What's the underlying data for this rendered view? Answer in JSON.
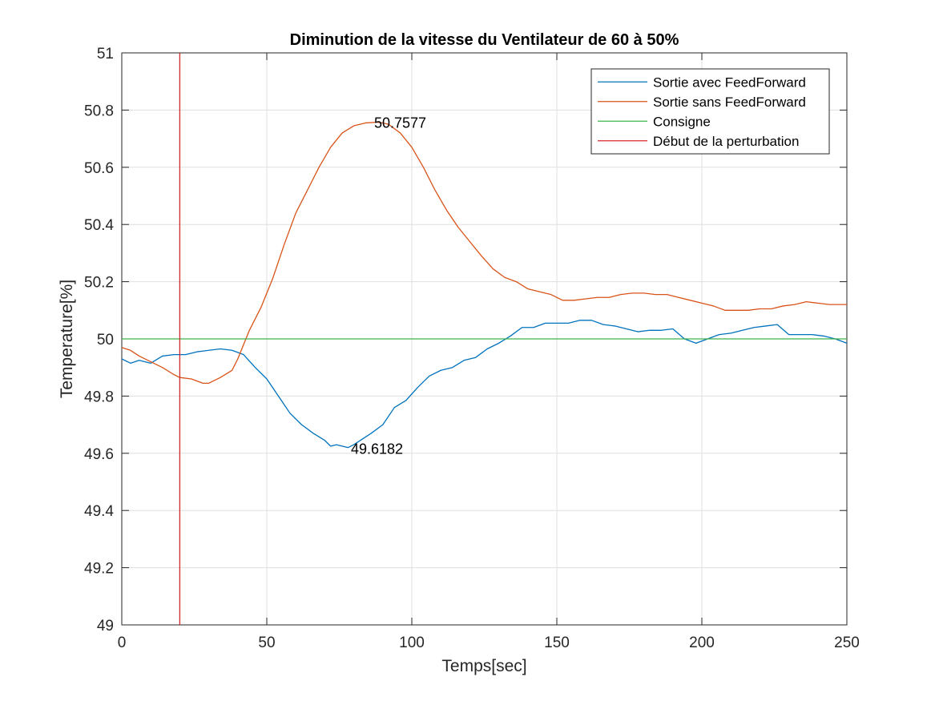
{
  "chart_data": {
    "type": "line",
    "title": "Diminution de la vitesse du Ventilateur de 60 à 50%",
    "xlabel": "Temps[sec]",
    "ylabel": "Temperature[%]",
    "xlim": [
      0,
      250
    ],
    "ylim": [
      49,
      51
    ],
    "xticks": [
      0,
      50,
      100,
      150,
      200,
      250
    ],
    "xtick_labels": [
      "0",
      "50",
      "100",
      "150",
      "200",
      "250"
    ],
    "yticks": [
      49,
      49.2,
      49.4,
      49.6,
      49.8,
      50,
      50.2,
      50.4,
      50.6,
      50.8,
      51
    ],
    "ytick_labels": [
      "49",
      "49.2",
      "49.4",
      "49.6",
      "49.8",
      "50",
      "50.2",
      "50.4",
      "50.6",
      "50.8",
      "51"
    ],
    "grid": true,
    "legend_position": "top-right",
    "series": [
      {
        "name": "Sortie avec FeedForward",
        "color": "#0072BD",
        "x": [
          0,
          3,
          6,
          10,
          14,
          18,
          22,
          26,
          30,
          34,
          38,
          42,
          46,
          50,
          54,
          58,
          62,
          66,
          70,
          72,
          74,
          76,
          78,
          80,
          83,
          86,
          90,
          94,
          98,
          102,
          106,
          110,
          114,
          118,
          122,
          126,
          130,
          134,
          138,
          142,
          146,
          150,
          154,
          158,
          162,
          166,
          170,
          174,
          178,
          182,
          186,
          190,
          194,
          198,
          202,
          206,
          210,
          214,
          218,
          222,
          226,
          230,
          234,
          238,
          242,
          246,
          250
        ],
        "y": [
          49.93,
          49.915,
          49.925,
          49.915,
          49.94,
          49.945,
          49.945,
          49.955,
          49.96,
          49.965,
          49.96,
          49.945,
          49.9,
          49.86,
          49.8,
          49.74,
          49.7,
          49.67,
          49.645,
          49.625,
          49.63,
          49.625,
          49.62,
          49.63,
          49.65,
          49.67,
          49.7,
          49.76,
          49.785,
          49.83,
          49.87,
          49.89,
          49.9,
          49.925,
          49.935,
          49.965,
          49.985,
          50.01,
          50.04,
          50.04,
          50.055,
          50.055,
          50.055,
          50.065,
          50.065,
          50.05,
          50.045,
          50.035,
          50.025,
          50.03,
          50.03,
          50.035,
          50.0,
          49.985,
          50.0,
          50.015,
          50.02,
          50.03,
          50.04,
          50.045,
          50.05,
          50.015,
          50.015,
          50.015,
          50.01,
          50.0,
          49.985
        ]
      },
      {
        "name": "Sortie sans FeedForward",
        "color": "#D95319",
        "x": [
          0,
          3,
          6,
          10,
          14,
          18,
          20,
          24,
          28,
          30,
          34,
          38,
          40,
          44,
          48,
          52,
          56,
          60,
          64,
          68,
          72,
          76,
          80,
          84,
          88,
          90,
          92,
          96,
          100,
          104,
          108,
          112,
          116,
          120,
          124,
          128,
          132,
          136,
          140,
          144,
          148,
          152,
          156,
          160,
          164,
          168,
          172,
          176,
          180,
          184,
          188,
          192,
          196,
          200,
          204,
          208,
          212,
          216,
          220,
          224,
          228,
          232,
          236,
          240,
          244,
          248,
          250
        ],
        "y": [
          49.97,
          49.96,
          49.94,
          49.92,
          49.9,
          49.875,
          49.865,
          49.86,
          49.845,
          49.845,
          49.865,
          49.89,
          49.93,
          50.03,
          50.11,
          50.21,
          50.33,
          50.44,
          50.52,
          50.6,
          50.67,
          50.72,
          50.745,
          50.755,
          50.7577,
          50.755,
          50.75,
          50.72,
          50.67,
          50.6,
          50.52,
          50.45,
          50.39,
          50.34,
          50.29,
          50.245,
          50.215,
          50.2,
          50.175,
          50.165,
          50.155,
          50.135,
          50.135,
          50.14,
          50.145,
          50.145,
          50.155,
          50.16,
          50.16,
          50.155,
          50.155,
          50.145,
          50.135,
          50.125,
          50.115,
          50.1,
          50.1,
          50.1,
          50.105,
          50.105,
          50.115,
          50.12,
          50.13,
          50.125,
          50.12,
          50.12,
          50.12
        ]
      },
      {
        "name": "Consigne",
        "color": "#3CB44B",
        "x": [
          0,
          250
        ],
        "y": [
          50,
          50
        ]
      },
      {
        "name": "Début de la perturbation",
        "color": "#D62728",
        "x": [
          20,
          20
        ],
        "y": [
          49,
          51
        ]
      }
    ],
    "annotations": [
      {
        "text": "50.7577",
        "x": 87,
        "y": 50.7577
      },
      {
        "text": "49.6182",
        "x": 79,
        "y": 49.6182
      }
    ]
  }
}
